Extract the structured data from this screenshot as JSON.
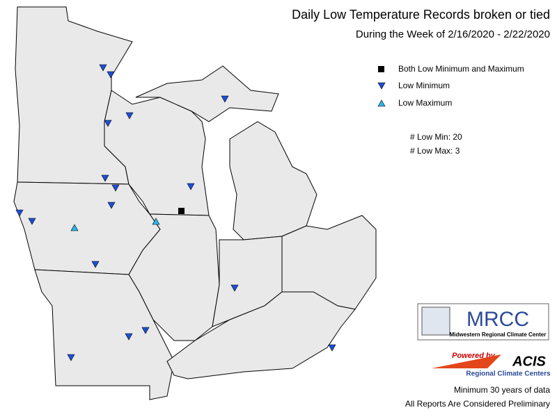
{
  "title": "Daily Low Temperature Records broken or tied",
  "subtitle": "During the Week of 2/16/2020 - 2/22/2020",
  "legend": {
    "items": [
      "Both Low Minimum and Maximum",
      "Low Minimum",
      "Low Maximum"
    ]
  },
  "counts": [
    "# Low Min: 20",
    "# Low Max: 3"
  ],
  "logo": {
    "name": "MRCC",
    "subtitle": "Midwestern Regional Climate Center"
  },
  "acis": {
    "powered": "Powered by",
    "name": "ACIS",
    "subtitle": "Regional Climate Centers"
  },
  "footer": [
    "Minimum 30 years of data",
    "All Reports Are Considered Preliminary"
  ]
}
